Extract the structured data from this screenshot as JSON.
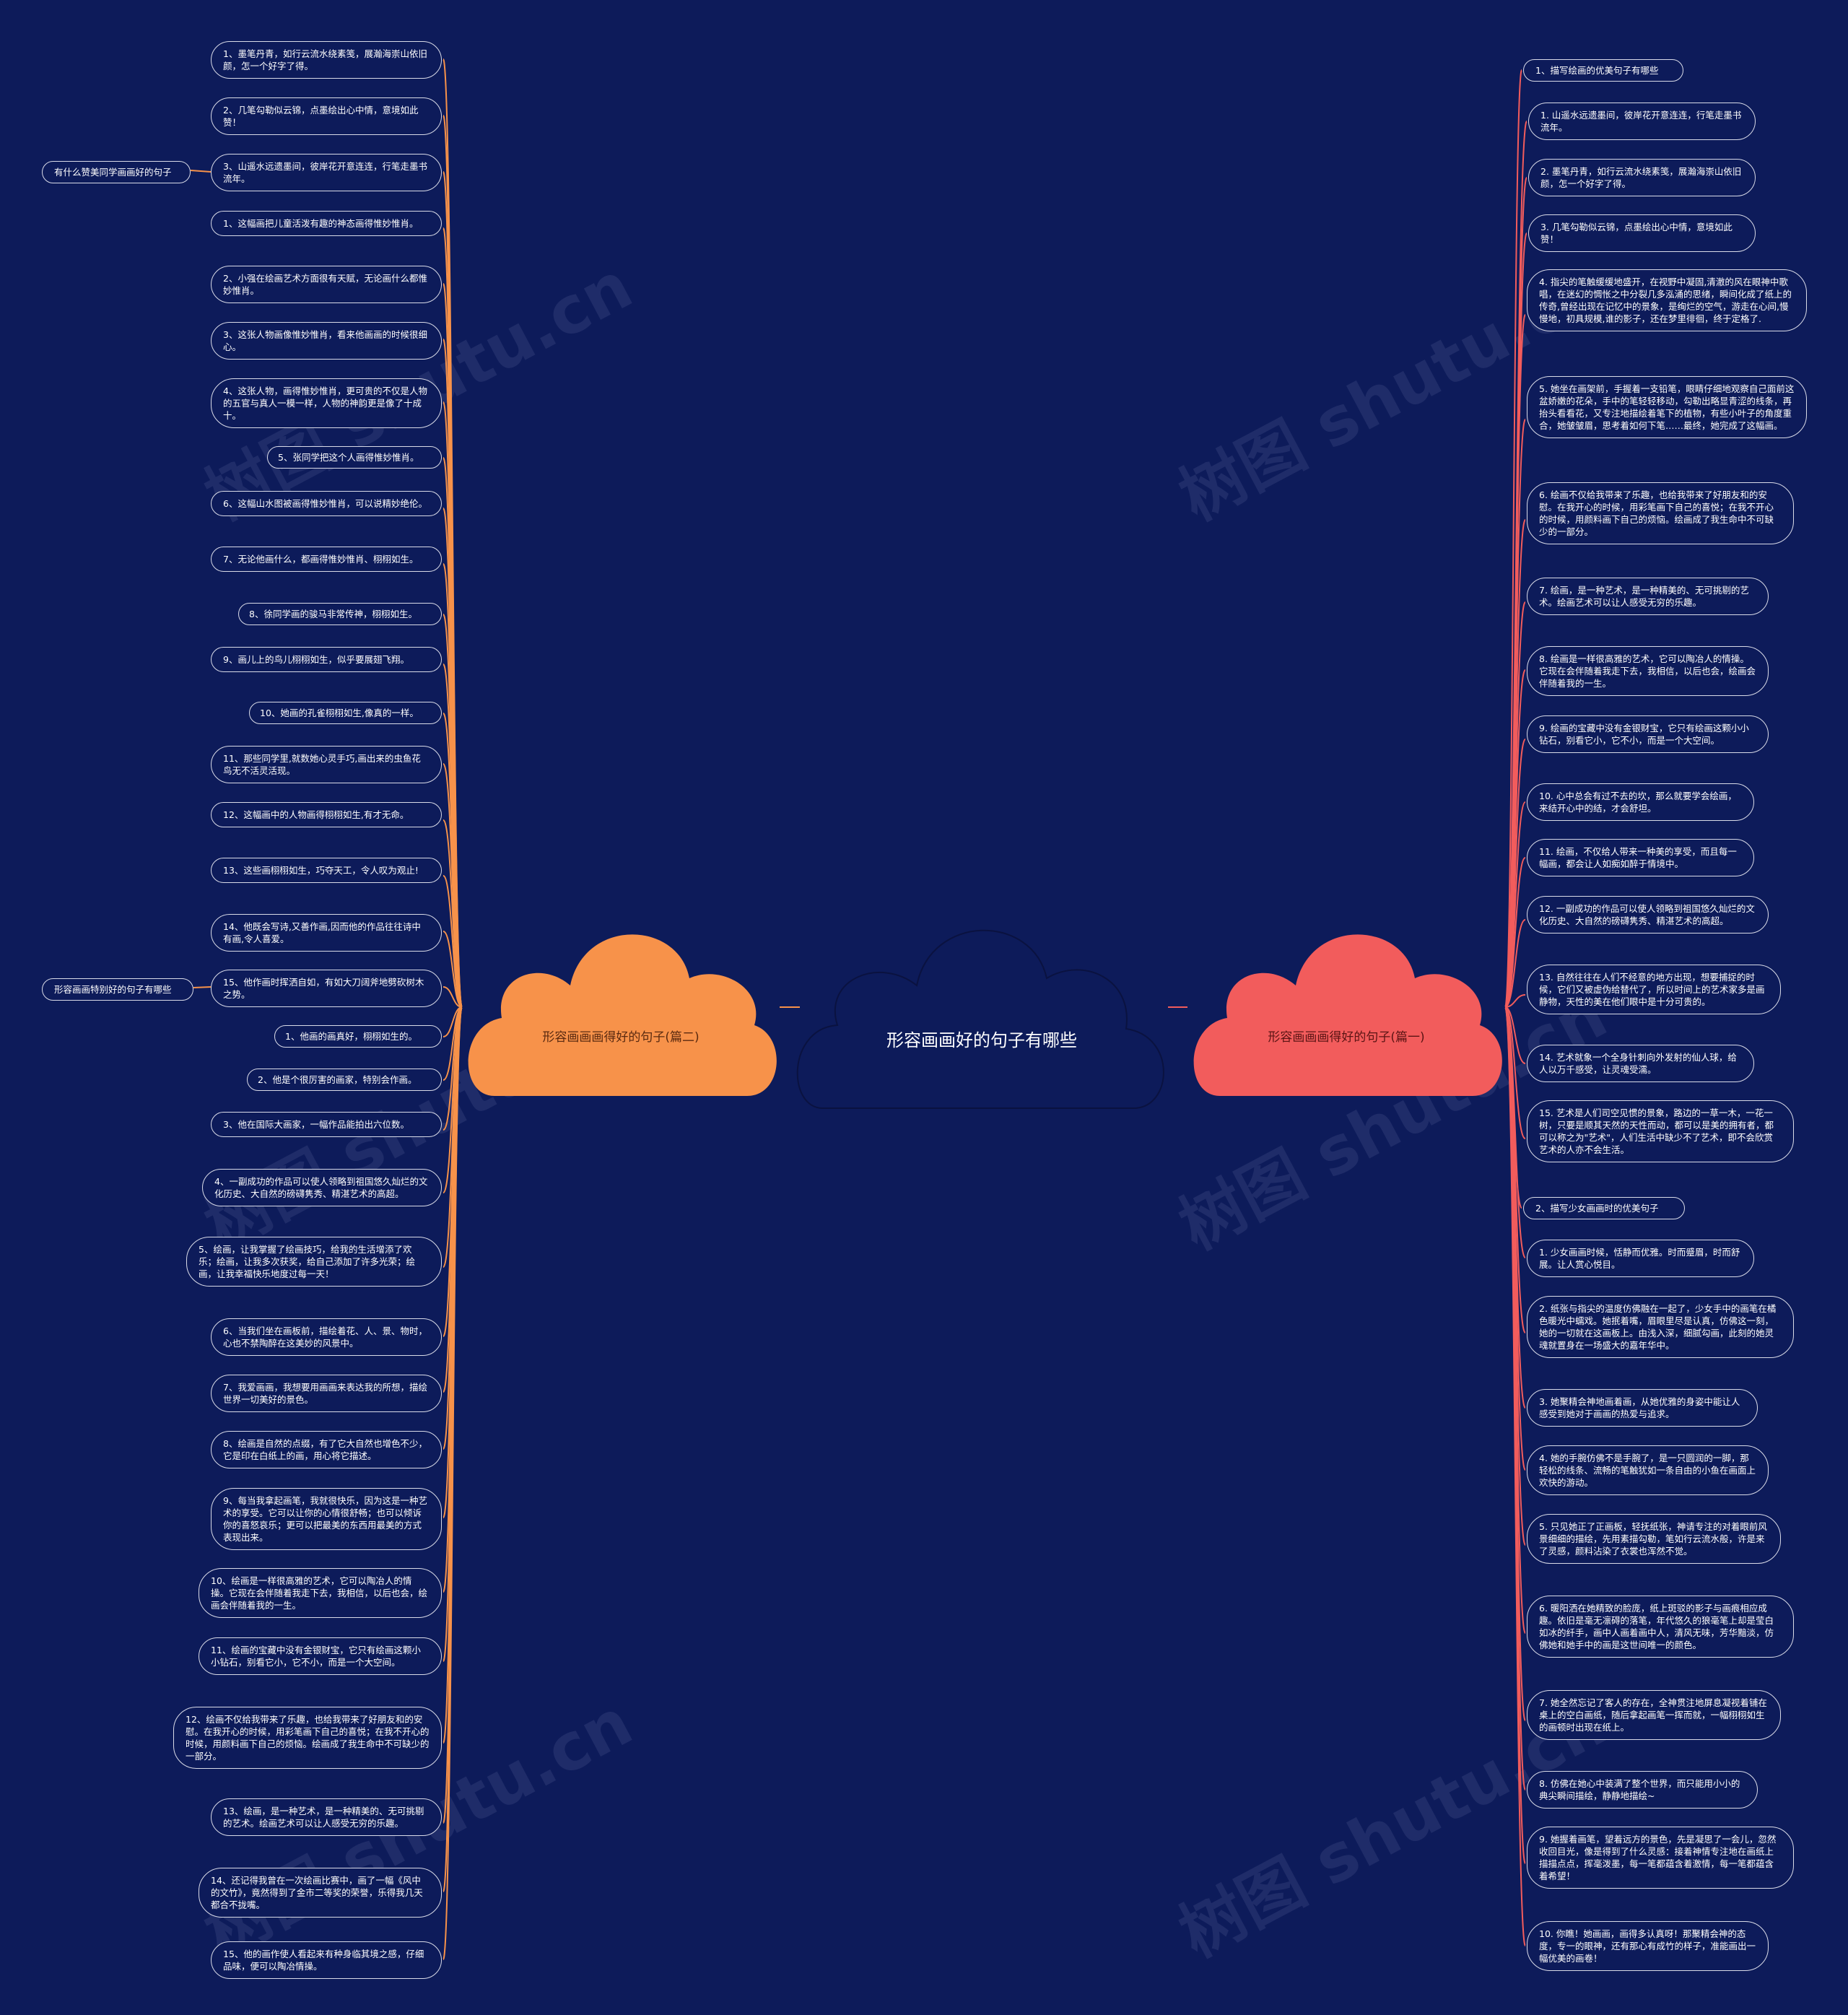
{
  "center": {
    "title": "形容画画好的句子有哪些"
  },
  "colors": {
    "background": "#0d1b5a",
    "left_branch": "#f7924a",
    "right_branch": "#f25c5c",
    "center_fill": "#0d1b5a",
    "node_border": "#d9dbe8"
  },
  "watermark": "树图 shutu.cn",
  "left_branch": {
    "title": "形容画画画得好的句子(篇二)",
    "groups": [
      {
        "label": "有什么赞美同学画画好的句子",
        "items": [
          "1、墨笔丹青，如行云流水绕素笺，展瀚海崇山依旧颜，怎一个好字了得。",
          "2、几笔勾勒似云锦，点墨绘出心中情，意境如此赞！",
          "3、山遥水远遗墨间，彼岸花开意连连，行笔走墨书流年。"
        ]
      },
      {
        "label": "",
        "items": [
          "1、这幅画把儿童活泼有趣的神态画得惟妙惟肖。",
          "2、小强在绘画艺术方面很有天赋，无论画什么都惟妙惟肖。",
          "3、这张人物画像惟妙惟肖，看来他画画的时候很细心。",
          "4、这张人物，画得惟妙惟肖，更可贵的不仅是人物的五官与真人一模一样，人物的神韵更是像了十成十。",
          "5、张同学把这个人画得惟妙惟肖。",
          "6、这幅山水图被画得惟妙惟肖，可以说精妙绝伦。",
          "7、无论他画什么，都画得惟妙惟肖、栩栩如生。",
          "8、徐同学画的骏马非常传神，栩栩如生。",
          "9、画儿上的鸟儿栩栩如生，似乎要展翅飞翔。",
          "10、她画的孔雀栩栩如生,像真的一样。",
          "11、那些同学里,就数她心灵手巧,画出来的虫鱼花鸟无不活灵活现。",
          "12、这幅画中的人物画得栩栩如生,有才无命。",
          "13、这些画栩栩如生，巧夺天工，令人叹为观止!",
          "14、他既会写诗,又善作画,因而他的作品往往诗中有画,令人喜爱。"
        ]
      },
      {
        "label": "形容画画特别好的句子有哪些",
        "items": [
          "15、他作画时挥洒自如，有如大刀阔斧地劈砍树木之势。",
          "1、他画的画真好，栩栩如生的。",
          "2、他是个很厉害的画家，特别会作画。",
          "3、他在国际大画家，一幅作品能拍出六位数。",
          "4、一副成功的作品可以使人领略到祖国悠久灿烂的文化历史、大自然的磅礴隽秀、精湛艺术的高超。",
          "5、绘画，让我掌握了绘画技巧，给我的生活增添了欢乐；绘画，让我多次获奖，给自己添加了许多光荣；绘画，让我幸福快乐地度过每一天！",
          "6、当我们坐在画板前，描绘着花、人、景、物时，心也不禁陶醉在这美妙的风景中。",
          "7、我爱画画，我想要用画画来表达我的所想，描绘世界一切美好的景色。",
          "8、绘画是自然的点缀，有了它大自然也增色不少，它是印在白纸上的画，用心将它描述。",
          "9、每当我拿起画笔，我就很快乐，因为这是一种艺术的享受。它可以让你的心情很舒畅；也可以倾诉你的喜怒哀乐；更可以把最美的东西用最美的方式表现出来。",
          "10、绘画是一样很高雅的艺术，它可以陶冶人的情操。它现在会伴随着我走下去，我相信，以后也会，绘画会伴随着我的一生。",
          "11、绘画的宝藏中没有金银财宝，它只有绘画这颗小小钻石，别看它小，它不小，而是一个大空间。",
          "12、绘画不仅给我带来了乐趣，也给我带来了好朋友和的安慰。在我开心的时候，用彩笔画下自己的喜悦；在我不开心的时候，用颜料画下自己的烦恼。绘画成了我生命中不可缺少的一部分。",
          "13、绘画，是一种艺术，是一种精美的、无可挑剔的艺术。绘画艺术可以让人感受无穷的乐趣。",
          "14、还记得我曾在一次绘画比赛中，画了一幅《风中的文竹》，竟然得到了金市二等奖的荣誉，乐得我几天都合不拢嘴。",
          "15、他的画作使人看起来有种身临其境之感，仔细品味，便可以陶冶情操。"
        ]
      }
    ]
  },
  "right_branch": {
    "title": "形容画画画得好的句子(篇一)",
    "groups": [
      {
        "label": "1、描写绘画的优美句子有哪些",
        "items": [
          "1. 山遥水远遗墨间，彼岸花开意连连，行笔走墨书流年。",
          "2. 墨笔丹青，如行云流水绕素笺，展瀚海崇山依旧颜，怎一个好字了得。",
          "3. 几笔勾勒似云锦，点墨绘出心中情，意境如此赞！",
          "4. 指尖的笔触缓缓地盛开，在视野中凝固,清澈的风在眼神中歌唱，在迷幻的惆怅之中分裂几多泓涌的思绪，瞬间化成了纸上的传奇,曾经出现在记忆中的景象，是绚烂的空气，游走在心间,慢慢地，初具规模,谁的影子，还在梦里徘徊，终于定格了.",
          "5. 她坐在画架前，手握着一支铅笔，眼睛仔细地观察自己面前这盆娇嫩的花朵，手中的笔轻轻移动，勾勒出略显青涩的线条，再抬头看看花，又专注地描绘着笔下的植物，有些小叶子的角度重合，她皱皱眉，思考着如何下笔……最终，她完成了这幅画。",
          "6. 绘画不仅给我带来了乐趣，也给我带来了好朋友和的安慰。在我开心的时候，用彩笔画下自己的喜悦；在我不开心的时候，用颜料画下自己的烦恼。绘画成了我生命中不可缺少的一部分。",
          "7. 绘画，是一种艺术，是一种精美的、无可挑剔的艺术。绘画艺术可以让人感受无穷的乐趣。",
          "8. 绘画是一样很高雅的艺术，它可以陶冶人的情操。它现在会伴随着我走下去，我相信，以后也会，绘画会伴随着我的一生。",
          "9. 绘画的宝藏中没有金银财宝，它只有绘画这颗小小钻石，别看它小，它不小，而是一个大空间。",
          "10. 心中总会有过不去的坎，那么就要学会绘画，来结开心中的结，才会舒坦。",
          "11. 绘画，不仅给人带来一种美的享受，而且每一幅画，都会让人如痴如醉于情境中。",
          "12. 一副成功的作品可以使人领略到祖国悠久灿烂的文化历史、大自然的磅礴隽秀、精湛艺术的高超。",
          "13. 自然往往在人们不经意的地方出现，想要捕捉的时候，它们又被虚伪给替代了，所以时间上的艺术家多是画静物，天性的美在他们眼中是十分可贵的。",
          "14. 艺术就象一个全身针刺向外发射的仙人球，给人以万千感受，让灵魂受濡。",
          "15. 艺术是人们司空见惯的景象，路边的一草一木，一花一树，只要是顺其天然的天性而动，都可以是美的拥有者，都可以称之为\"艺术\"，人们生活中缺少不了艺术，即不会欣赏艺术的人亦不会生活。"
        ]
      },
      {
        "label": "2、描写少女画画时的优美句子",
        "items": [
          "1. 少女画画时候，恬静而优雅。时而蹙眉，时而舒展。让人赏心悦目。",
          "2. 纸张与指尖的温度仿佛融在一起了，少女手中的画笔在橘色暖光中蠕戏。她抿着嘴，眉眼里尽是认真，仿佛这一刻，她的一切就在这画板上。由浅入深，细腻勾画，此刻的她灵魂就置身在一场盛大的嘉年华中。",
          "3. 她聚精会神地画着画，从她优雅的身姿中能让人感受到她对于画画的热爱与追求。",
          "4. 她的手腕仿佛不是手腕了，是一只圆润的一脚，那轻松的线条、流畅的笔触犹如一条自由的小鱼在画面上欢快的游动。",
          "5. 只见她正了正画板，轻抚纸张，神请专注的对着眼前风景细细的描绘，先用素描勾勒，笔如行云流水般，许是来了灵感，颜料沾染了衣裳也浑然不觉。",
          "6. 暖阳洒在她精致的脸庞，纸上斑驳的影子与画痕相应成趣。依旧是毫无凛碍的落笔，年代悠久的狼毫笔上却是莹白如冰的纤手，画中人画着画中人，清风无味，芳华黯淡，仿佛她和她手中的画是这世间唯一的颜色。",
          "7. 她全然忘记了客人的存在，全神贯注地屏息凝视着铺在桌上的空白画纸，随后拿起画笔一挥而就，一幅栩栩如生的画顿时出现在纸上。",
          "8. 仿佛在她心中装满了整个世界，而只能用小小的典尖瞬间描绘，静静地描绘~",
          "9. 她握着画笔，望着远方的景色，先是凝思了一会儿，忽然收回目光，像是得到了什么灵感：接着神情专注地在画纸上描描点点，挥毫泼墨，每一笔都蕴含着激情，每一笔都蕴含着希望！",
          "10. 你瞧！她画画，画得多认真呀！那聚精会神的态度，专一的眼神，还有那心有成竹的样子，准能画出一幅优美的画卷！"
        ]
      }
    ]
  }
}
